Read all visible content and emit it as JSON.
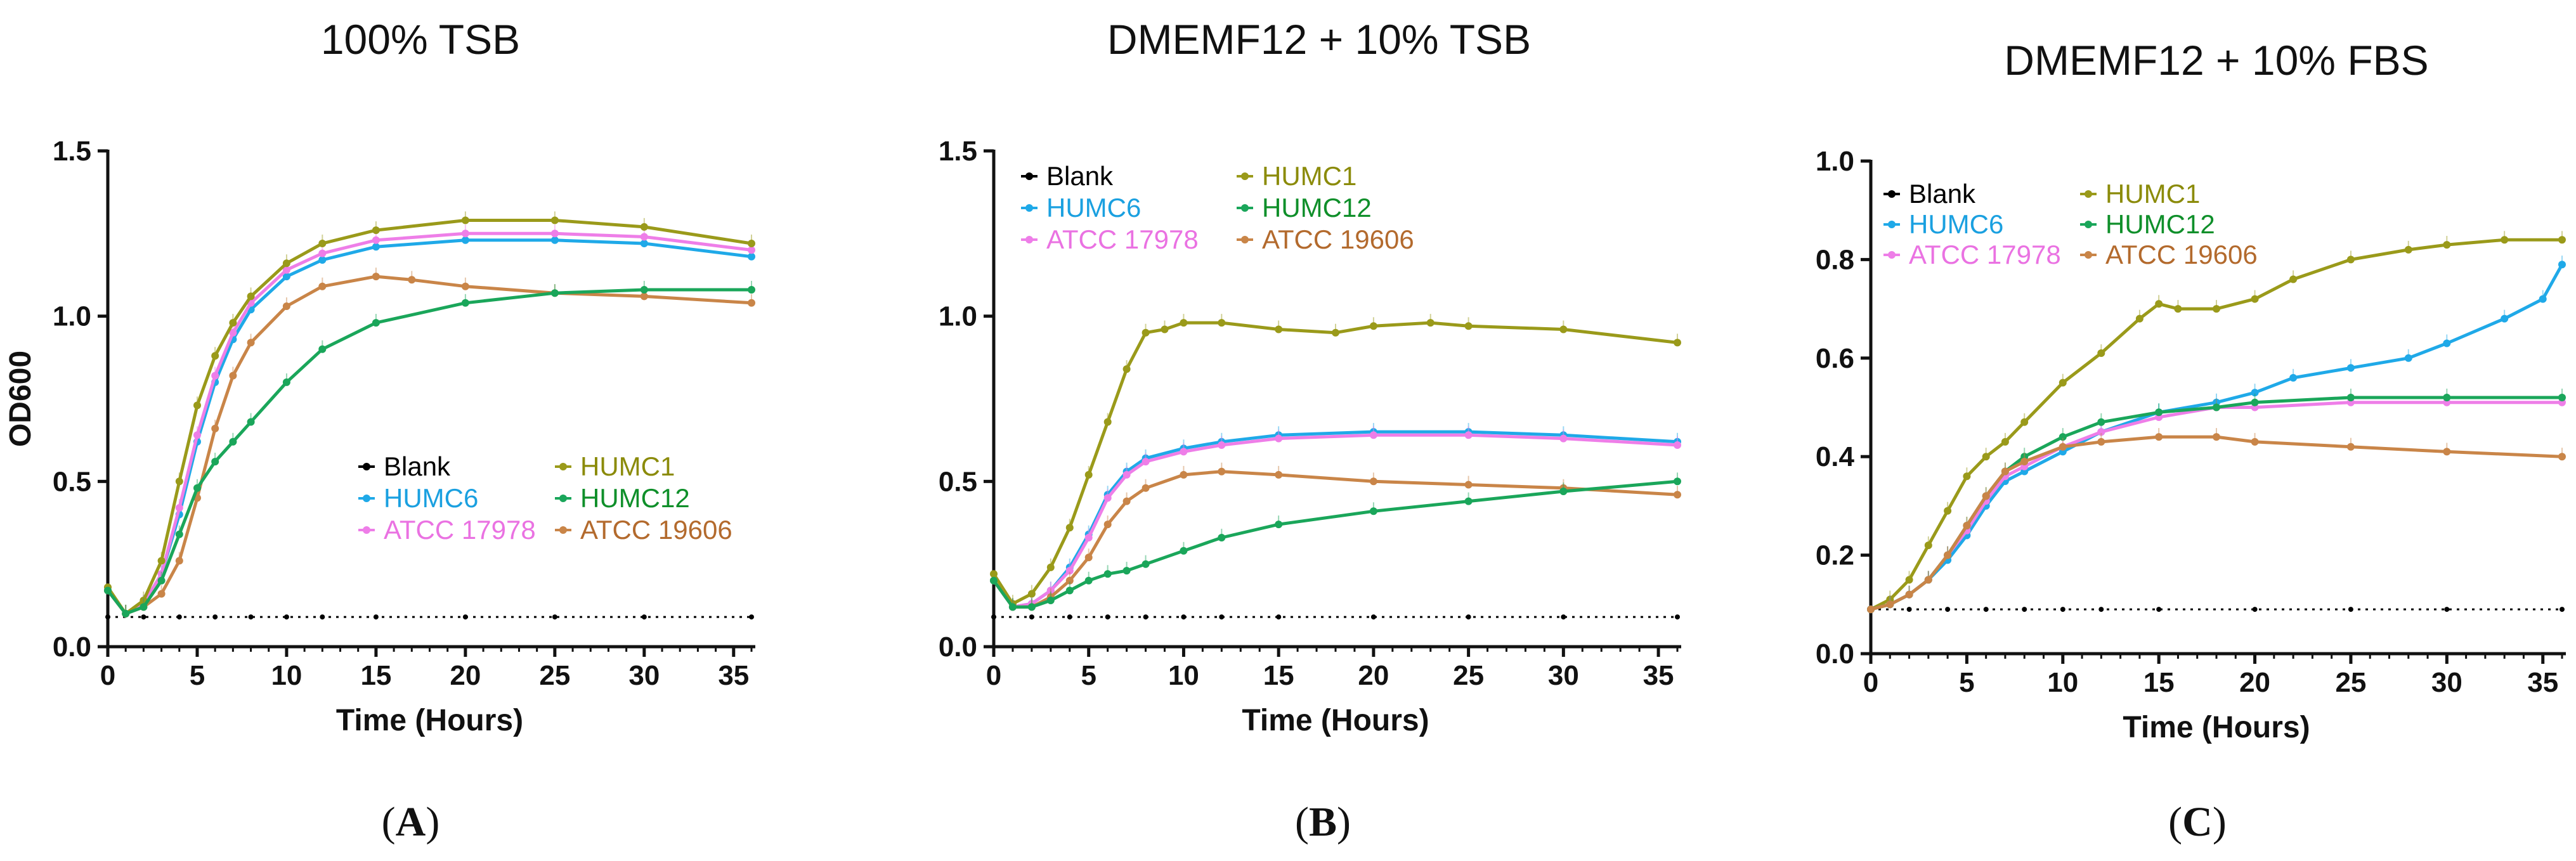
{
  "colors": {
    "Blank": "#000000",
    "HUMC1": "#9a9a1a",
    "HUMC6": "#1fa9e8",
    "HUMC12": "#1aa65a",
    "ATCC 17978": "#ee7ee8",
    "ATCC 19606": "#c98548"
  },
  "legend_text_colors": {
    "Blank": "#000000",
    "HUMC1": "#8b8b0a",
    "HUMC6": "#1aa0e0",
    "HUMC12": "#0f8f2a",
    "ATCC 17978": "#ea72e2",
    "ATCC 19606": "#b36a2d"
  },
  "chart_data": [
    {
      "type": "line",
      "panel_label": "A",
      "title": "100% TSB",
      "xlabel": "Time (Hours)",
      "ylabel": "OD600",
      "xlim": [
        0,
        36
      ],
      "ylim": [
        0,
        1.5
      ],
      "xticks": [
        0,
        5,
        10,
        15,
        20,
        25,
        30,
        35
      ],
      "xtick_labels": [
        "0",
        "5",
        "10",
        "15",
        "20",
        "25",
        "30",
        "35"
      ],
      "yticks": [
        0,
        0.5,
        1.0,
        1.5
      ],
      "ytick_labels": [
        "0.0",
        "0.5",
        "1.0",
        "1.5"
      ],
      "legend_position": "bottom-right",
      "series": [
        {
          "name": "Blank",
          "x": [
            0,
            2,
            4,
            6,
            8,
            10,
            12,
            15,
            20,
            25,
            30,
            36
          ],
          "y": [
            0.09,
            0.09,
            0.09,
            0.09,
            0.09,
            0.09,
            0.09,
            0.09,
            0.09,
            0.09,
            0.09,
            0.09
          ]
        },
        {
          "name": "HUMC6",
          "x": [
            0,
            1,
            2,
            3,
            4,
            5,
            6,
            7,
            8,
            10,
            12,
            15,
            20,
            25,
            30,
            36
          ],
          "y": [
            0.17,
            0.1,
            0.13,
            0.22,
            0.4,
            0.62,
            0.8,
            0.93,
            1.02,
            1.12,
            1.17,
            1.21,
            1.23,
            1.23,
            1.22,
            1.18
          ]
        },
        {
          "name": "ATCC 17978",
          "x": [
            0,
            1,
            2,
            3,
            4,
            5,
            6,
            7,
            8,
            10,
            12,
            15,
            20,
            25,
            30,
            36
          ],
          "y": [
            0.17,
            0.1,
            0.13,
            0.22,
            0.42,
            0.64,
            0.82,
            0.95,
            1.04,
            1.14,
            1.19,
            1.23,
            1.25,
            1.25,
            1.24,
            1.2
          ]
        },
        {
          "name": "HUMC1",
          "x": [
            0,
            1,
            2,
            3,
            4,
            5,
            6,
            7,
            8,
            10,
            12,
            15,
            20,
            25,
            30,
            36
          ],
          "y": [
            0.18,
            0.1,
            0.14,
            0.26,
            0.5,
            0.73,
            0.88,
            0.98,
            1.06,
            1.16,
            1.22,
            1.26,
            1.29,
            1.29,
            1.27,
            1.22
          ]
        },
        {
          "name": "ATCC 19606",
          "x": [
            0,
            1,
            2,
            3,
            4,
            5,
            6,
            7,
            8,
            10,
            12,
            15,
            17,
            20,
            25,
            30,
            36
          ],
          "y": [
            0.17,
            0.1,
            0.12,
            0.16,
            0.26,
            0.45,
            0.66,
            0.82,
            0.92,
            1.03,
            1.09,
            1.12,
            1.11,
            1.09,
            1.07,
            1.06,
            1.04
          ]
        },
        {
          "name": "HUMC12",
          "x": [
            0,
            1,
            2,
            3,
            4,
            5,
            6,
            7,
            8,
            10,
            12,
            15,
            20,
            25,
            30,
            36
          ],
          "y": [
            0.17,
            0.1,
            0.12,
            0.2,
            0.34,
            0.48,
            0.56,
            0.62,
            0.68,
            0.8,
            0.9,
            0.98,
            1.04,
            1.07,
            1.08,
            1.08
          ]
        }
      ]
    },
    {
      "type": "line",
      "panel_label": "B",
      "title": "DMEMF12 + 10% TSB",
      "xlabel": "Time (Hours)",
      "ylabel": "",
      "xlim": [
        0,
        36
      ],
      "ylim": [
        0,
        1.5
      ],
      "xticks": [
        0,
        5,
        10,
        15,
        20,
        25,
        30,
        35
      ],
      "xtick_labels": [
        "0",
        "5",
        "10",
        "15",
        "20",
        "25",
        "30",
        "35"
      ],
      "yticks": [
        0,
        0.5,
        1.0,
        1.5
      ],
      "ytick_labels": [
        "0.0",
        "0.5",
        "1.0",
        "1.5"
      ],
      "legend_position": "top-left",
      "series": [
        {
          "name": "Blank",
          "x": [
            0,
            2,
            4,
            6,
            8,
            10,
            12,
            15,
            20,
            25,
            30,
            36
          ],
          "y": [
            0.09,
            0.09,
            0.09,
            0.09,
            0.09,
            0.09,
            0.09,
            0.09,
            0.09,
            0.09,
            0.09,
            0.09
          ]
        },
        {
          "name": "HUMC6",
          "x": [
            0,
            1,
            2,
            3,
            4,
            5,
            6,
            7,
            8,
            10,
            12,
            15,
            20,
            25,
            30,
            36
          ],
          "y": [
            0.2,
            0.12,
            0.13,
            0.17,
            0.24,
            0.34,
            0.46,
            0.53,
            0.57,
            0.6,
            0.62,
            0.64,
            0.65,
            0.65,
            0.64,
            0.62
          ]
        },
        {
          "name": "ATCC 17978",
          "x": [
            0,
            1,
            2,
            3,
            4,
            5,
            6,
            7,
            8,
            10,
            12,
            15,
            20,
            25,
            30,
            36
          ],
          "y": [
            0.2,
            0.12,
            0.13,
            0.17,
            0.23,
            0.33,
            0.45,
            0.52,
            0.56,
            0.59,
            0.61,
            0.63,
            0.64,
            0.64,
            0.63,
            0.61
          ]
        },
        {
          "name": "HUMC1",
          "x": [
            0,
            1,
            2,
            3,
            4,
            5,
            6,
            7,
            8,
            9,
            10,
            12,
            15,
            18,
            20,
            23,
            25,
            30,
            36
          ],
          "y": [
            0.22,
            0.13,
            0.16,
            0.24,
            0.36,
            0.52,
            0.68,
            0.84,
            0.95,
            0.96,
            0.98,
            0.98,
            0.96,
            0.95,
            0.97,
            0.98,
            0.97,
            0.96,
            0.92
          ]
        },
        {
          "name": "ATCC 19606",
          "x": [
            0,
            1,
            2,
            3,
            4,
            5,
            6,
            7,
            8,
            10,
            12,
            15,
            20,
            25,
            30,
            36
          ],
          "y": [
            0.2,
            0.12,
            0.12,
            0.15,
            0.2,
            0.27,
            0.37,
            0.44,
            0.48,
            0.52,
            0.53,
            0.52,
            0.5,
            0.49,
            0.48,
            0.46
          ]
        },
        {
          "name": "HUMC12",
          "x": [
            0,
            1,
            2,
            3,
            4,
            5,
            6,
            7,
            8,
            10,
            12,
            15,
            20,
            25,
            30,
            36
          ],
          "y": [
            0.2,
            0.12,
            0.12,
            0.14,
            0.17,
            0.2,
            0.22,
            0.23,
            0.25,
            0.29,
            0.33,
            0.37,
            0.41,
            0.44,
            0.47,
            0.5
          ]
        }
      ]
    },
    {
      "type": "line",
      "panel_label": "C",
      "title": "DMEMF12 + 10% FBS",
      "xlabel": "Time (Hours)",
      "ylabel": "",
      "xlim": [
        0,
        36
      ],
      "ylim": [
        0,
        1.0
      ],
      "xticks": [
        0,
        5,
        10,
        15,
        20,
        25,
        30,
        35
      ],
      "xtick_labels": [
        "0",
        "5",
        "10",
        "15",
        "20",
        "25",
        "30",
        "35"
      ],
      "yticks": [
        0,
        0.2,
        0.4,
        0.6,
        0.8,
        1.0
      ],
      "ytick_labels": [
        "0.0",
        "0.2",
        "0.4",
        "0.6",
        "0.8",
        "1.0"
      ],
      "legend_position": "top-left",
      "series": [
        {
          "name": "Blank",
          "x": [
            0,
            2,
            4,
            6,
            8,
            10,
            12,
            15,
            20,
            25,
            30,
            36
          ],
          "y": [
            0.09,
            0.09,
            0.09,
            0.09,
            0.09,
            0.09,
            0.09,
            0.09,
            0.09,
            0.09,
            0.09,
            0.09
          ]
        },
        {
          "name": "HUMC1",
          "x": [
            0,
            1,
            2,
            3,
            4,
            5,
            6,
            7,
            8,
            10,
            12,
            14,
            15,
            16,
            18,
            20,
            22,
            25,
            28,
            30,
            33,
            36
          ],
          "y": [
            0.09,
            0.11,
            0.15,
            0.22,
            0.29,
            0.36,
            0.4,
            0.43,
            0.47,
            0.55,
            0.61,
            0.68,
            0.71,
            0.7,
            0.7,
            0.72,
            0.76,
            0.8,
            0.82,
            0.83,
            0.84,
            0.84
          ]
        },
        {
          "name": "HUMC6",
          "x": [
            0,
            1,
            2,
            3,
            4,
            5,
            6,
            7,
            8,
            10,
            12,
            15,
            18,
            20,
            22,
            25,
            28,
            30,
            33,
            35,
            36
          ],
          "y": [
            0.09,
            0.1,
            0.12,
            0.15,
            0.19,
            0.24,
            0.3,
            0.35,
            0.37,
            0.41,
            0.45,
            0.49,
            0.51,
            0.53,
            0.56,
            0.58,
            0.6,
            0.63,
            0.68,
            0.72,
            0.79
          ]
        },
        {
          "name": "ATCC 17978",
          "x": [
            0,
            1,
            2,
            3,
            4,
            5,
            6,
            7,
            8,
            10,
            12,
            15,
            18,
            20,
            25,
            30,
            36
          ],
          "y": [
            0.09,
            0.1,
            0.12,
            0.15,
            0.2,
            0.25,
            0.31,
            0.36,
            0.38,
            0.42,
            0.45,
            0.48,
            0.5,
            0.5,
            0.51,
            0.51,
            0.51
          ]
        },
        {
          "name": "HUMC12",
          "x": [
            0,
            1,
            2,
            3,
            4,
            5,
            6,
            7,
            8,
            10,
            12,
            15,
            18,
            20,
            25,
            30,
            36
          ],
          "y": [
            0.09,
            0.1,
            0.12,
            0.15,
            0.2,
            0.26,
            0.32,
            0.37,
            0.4,
            0.44,
            0.47,
            0.49,
            0.5,
            0.51,
            0.52,
            0.52,
            0.52
          ]
        },
        {
          "name": "ATCC 19606",
          "x": [
            0,
            1,
            2,
            3,
            4,
            5,
            6,
            7,
            8,
            10,
            12,
            15,
            18,
            20,
            25,
            30,
            36
          ],
          "y": [
            0.09,
            0.1,
            0.12,
            0.15,
            0.2,
            0.26,
            0.32,
            0.37,
            0.39,
            0.42,
            0.43,
            0.44,
            0.44,
            0.43,
            0.42,
            0.41,
            0.4
          ]
        }
      ]
    }
  ],
  "legend_order": [
    [
      "Blank",
      "HUMC1"
    ],
    [
      "HUMC6",
      "HUMC12"
    ],
    [
      "ATCC 17978",
      "ATCC 19606"
    ]
  ]
}
